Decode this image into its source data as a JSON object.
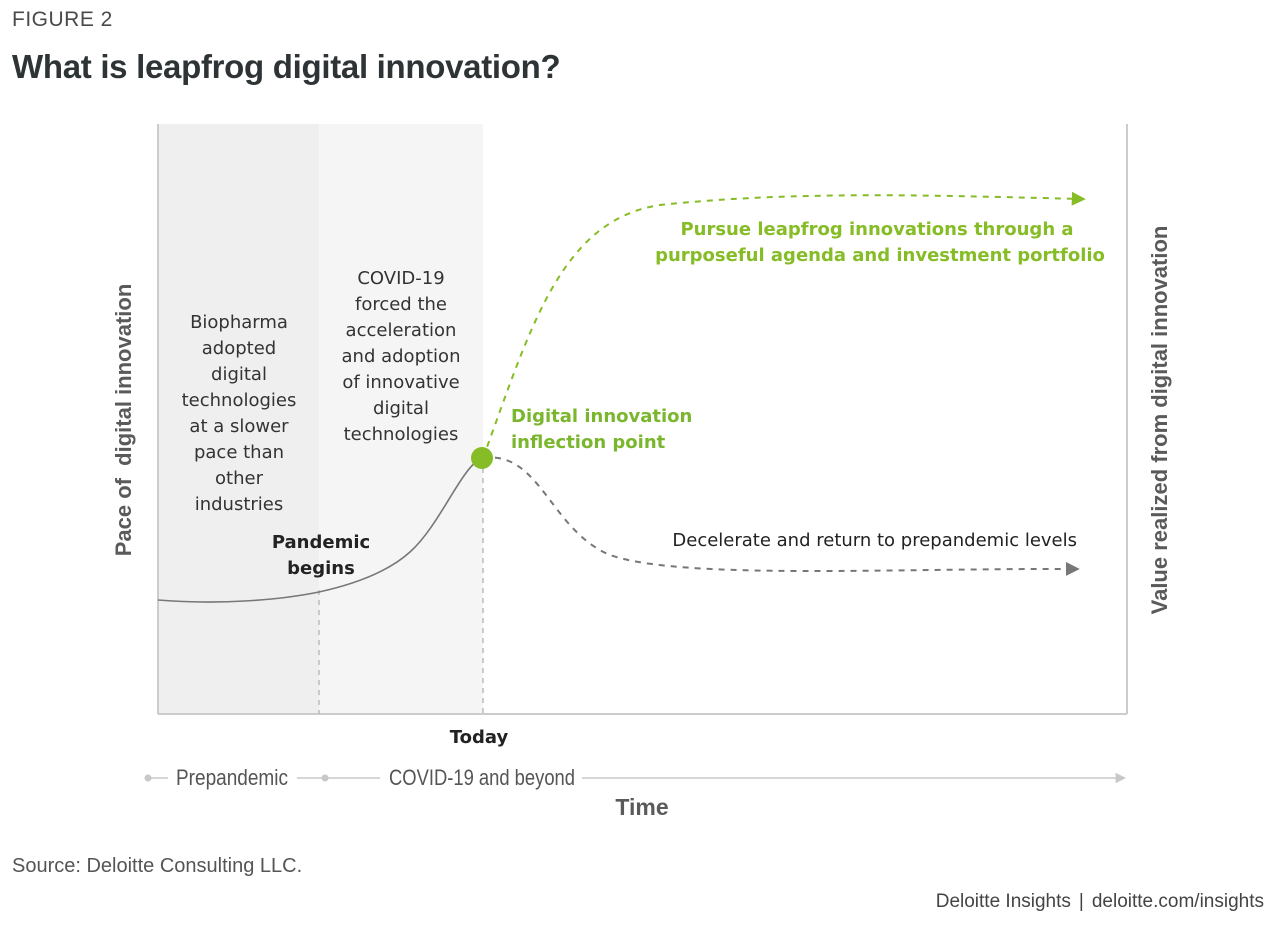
{
  "figure_label": "FIGURE 2",
  "title": "What is leapfrog digital innovation?",
  "diagram": {
    "y_axis_left": "Pace of  digital innovation",
    "y_axis_right": "Value realized from digital innovation",
    "x_axis_label": "Time",
    "region_prepandemic_text": [
      "Biopharma",
      "adopted",
      "digital",
      "technologies",
      "at a slower",
      "pace than",
      "other",
      "industries"
    ],
    "region_covid_text": [
      "COVID-19",
      "forced the",
      "acceleration",
      "and adoption",
      "of innovative",
      "digital",
      "technologies"
    ],
    "pandemic_marker": [
      "Pandemic",
      "begins"
    ],
    "today_marker": "Today",
    "inflection_label": [
      "Digital innovation",
      "inflection point"
    ],
    "leapfrog_label": [
      "Pursue leapfrog innovations through a",
      "purposeful agenda and investment portfolio"
    ],
    "decelerate_label": "Decelerate and return to prepandemic levels",
    "timeline_phase_1": "Prepandemic",
    "timeline_phase_2": "COVID-19 and beyond",
    "colors": {
      "green": "#86bc25",
      "green_text": "#7ab62e",
      "gray_line": "#777777",
      "shade": "#f3f3f3"
    }
  },
  "source": "Source: Deloitte Consulting LLC.",
  "footer": {
    "brand": "Deloitte Insights",
    "separator": "|",
    "url": "deloitte.com/insights"
  }
}
